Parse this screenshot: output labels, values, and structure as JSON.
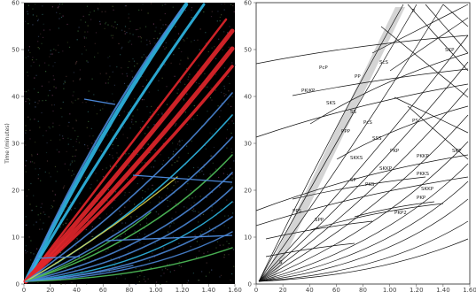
{
  "figure": {
    "y_axis_label": "Time (minutes)",
    "y_ticks": [
      "0",
      "10",
      "20",
      "30",
      "40",
      "50",
      "60"
    ],
    "x_ticks": [
      "0",
      "20",
      "40",
      "60",
      "80",
      "1.00",
      "1.20",
      "1.40",
      "1.60"
    ],
    "right_y_ticks": [
      "0",
      "10",
      "20",
      "30",
      "40",
      "50",
      "60"
    ],
    "right_x_ticks": [
      "0",
      "20",
      "40",
      "60",
      "80",
      "1.00",
      "1.20",
      "1.40",
      "1.60"
    ],
    "curve_labels": [
      "S",
      "P",
      "PcP",
      "PP",
      "PKiKP",
      "SKS",
      "ScS",
      "SS",
      "SKP",
      "PcS",
      "PS",
      "PPP",
      "SSS",
      "PKP",
      "PKKP",
      "SKKS",
      "SKKP",
      "SP",
      "PKS",
      "PKKS",
      "SKKP",
      "PPS",
      "SPP",
      "PKP2",
      "PKP",
      "SKP"
    ],
    "colors": {
      "left_background": "#000000",
      "cyan_branch": "#2fb8e6",
      "red_branch": "#e3262b",
      "blue_branch": "#4a86d6",
      "green_branch": "#4fc05a",
      "yellow_branch": "#d9d24a",
      "right_background": "#ffffff",
      "line": "#111111",
      "shadow_band": "#cccccc"
    }
  }
}
